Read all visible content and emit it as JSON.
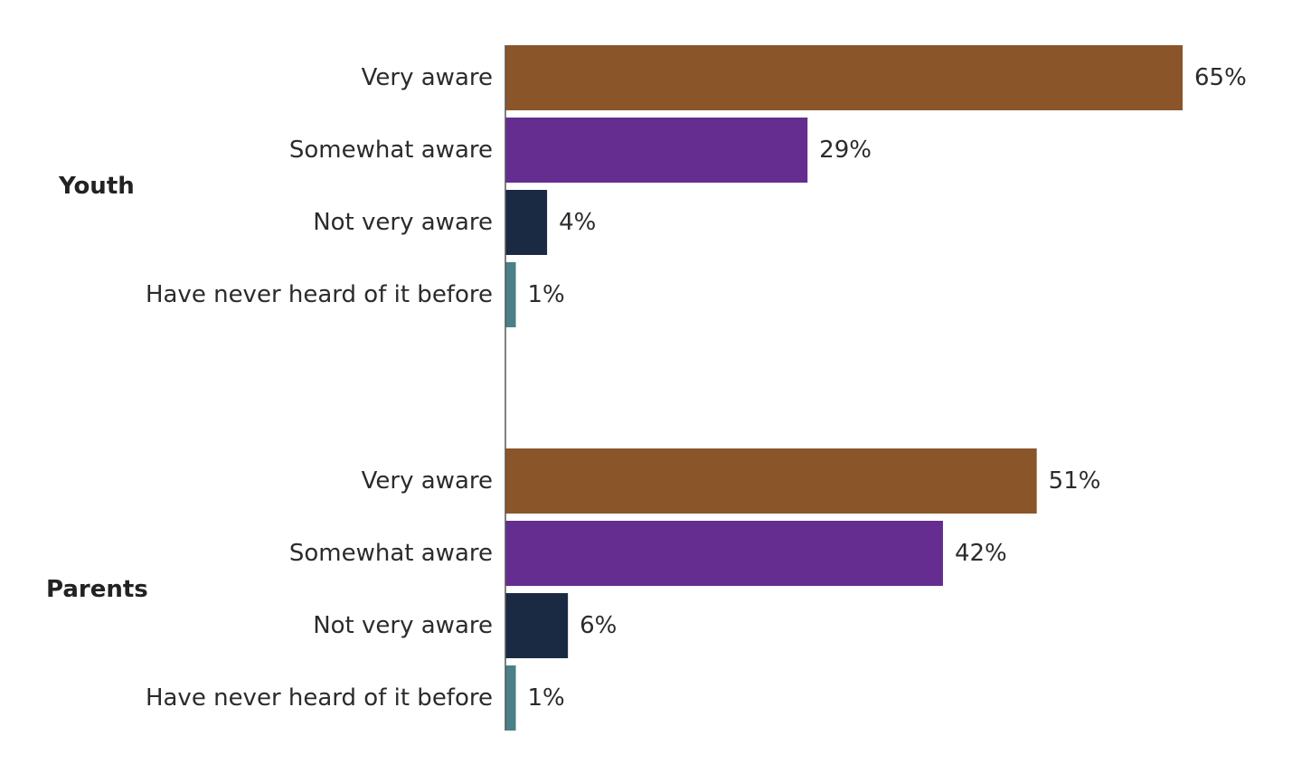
{
  "chart_data": {
    "type": "bar",
    "orientation": "horizontal",
    "xlim": [
      0,
      65
    ],
    "grid": false,
    "legend": "none",
    "groups": [
      {
        "name": "Youth",
        "categories": [
          "Very aware",
          "Somewhat aware",
          "Not very aware",
          "Have never heard of it before"
        ],
        "values": [
          65,
          29,
          4,
          1
        ],
        "labels": [
          "65%",
          "29%",
          "4%",
          "1%"
        ]
      },
      {
        "name": "Parents",
        "categories": [
          "Very aware",
          "Somewhat aware",
          "Not very aware",
          "Have never heard of it before"
        ],
        "values": [
          51,
          42,
          6,
          1
        ],
        "labels": [
          "51%",
          "42%",
          "6%",
          "1%"
        ]
      }
    ],
    "colors": [
      "#8B552A",
      "#652D90",
      "#1B2A43",
      "#4B8088"
    ]
  }
}
